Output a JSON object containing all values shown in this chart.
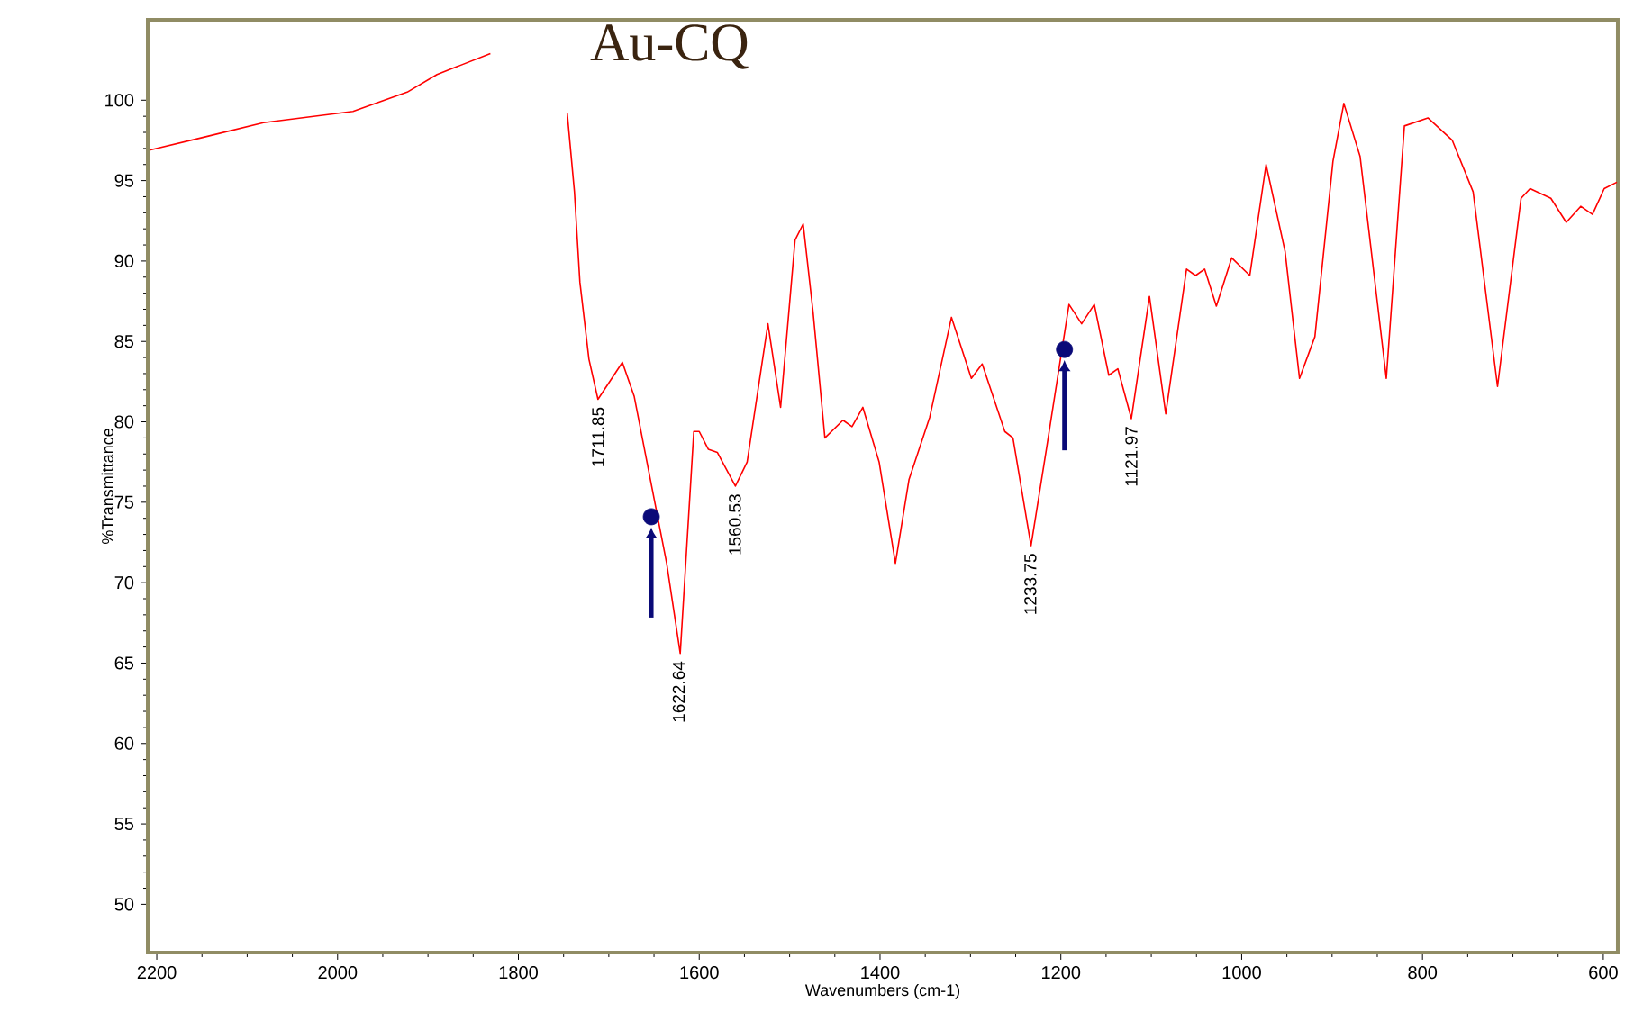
{
  "chart_data": {
    "type": "line",
    "title": "Au-CQ",
    "xlabel": "Wavenumbers (cm-1)",
    "ylabel": "%Transmittance",
    "xlim": [
      2210,
      584
    ],
    "ylim": [
      47,
      105
    ],
    "xticks": [
      2200,
      2000,
      1800,
      1600,
      1400,
      1200,
      1000,
      800,
      600
    ],
    "yticks": [
      50,
      55,
      60,
      65,
      70,
      75,
      80,
      85,
      90,
      95,
      100
    ],
    "series": [
      {
        "type": "line",
        "color": "#ff0000",
        "x": [
          2208,
          2148,
          2082,
          1983,
          1923,
          1890,
          1831,
          1790,
          1746,
          1738,
          1732,
          1722,
          1712,
          1685,
          1672,
          1636,
          1621,
          1606,
          1600,
          1590,
          1580,
          1560,
          1547,
          1524,
          1510,
          1494,
          1485,
          1474,
          1461,
          1441,
          1431,
          1419,
          1401,
          1383,
          1368,
          1345,
          1321,
          1299,
          1287,
          1262,
          1253,
          1233,
          1216,
          1191,
          1177,
          1163,
          1147,
          1137,
          1122,
          1102,
          1084,
          1061,
          1051,
          1041,
          1028,
          1011,
          991,
          973,
          952,
          936,
          919,
          899,
          887,
          869,
          840,
          820,
          794,
          767,
          744,
          717,
          691,
          681,
          658,
          641,
          625,
          612,
          599,
          585
        ],
        "values": [
          96.9,
          97.7,
          98.6,
          99.3,
          100.5,
          101.6,
          102.9,
          null,
          99.2,
          94.3,
          88.7,
          83.9,
          81.4,
          83.7,
          81.6,
          71.2,
          65.6,
          79.4,
          79.4,
          78.3,
          78.1,
          76.0,
          77.5,
          86.1,
          80.9,
          91.3,
          92.3,
          86.8,
          79.0,
          80.1,
          79.7,
          80.9,
          77.5,
          71.2,
          76.4,
          80.3,
          86.5,
          82.7,
          83.6,
          79.4,
          79.0,
          72.3,
          78.3,
          87.3,
          86.1,
          87.3,
          82.9,
          83.3,
          80.2,
          87.8,
          80.5,
          89.5,
          89.1,
          89.5,
          87.2,
          90.2,
          89.1,
          96.0,
          90.6,
          82.7,
          85.3,
          96.2,
          99.8,
          96.5,
          82.7,
          98.4,
          98.9,
          97.5,
          94.3,
          82.2,
          93.9,
          94.5,
          93.9,
          92.4,
          93.4,
          92.9,
          94.5,
          94.9
        ]
      },
      {
        "type": "scatter",
        "marker": "circle",
        "color": "#0a0a78",
        "x": [
          1653,
          1196
        ],
        "values": [
          74.1,
          84.5
        ]
      }
    ],
    "annotations": [
      {
        "text": "1711.85",
        "x": 1711.85,
        "y": 81.4
      },
      {
        "text": "1622.64",
        "x": 1622.64,
        "y": 65.6
      },
      {
        "text": "1560.53",
        "x": 1560.53,
        "y": 76.0
      },
      {
        "text": "1233.75",
        "x": 1233.75,
        "y": 72.3
      },
      {
        "text": "1121.97",
        "x": 1121.97,
        "y": 80.2
      }
    ]
  }
}
